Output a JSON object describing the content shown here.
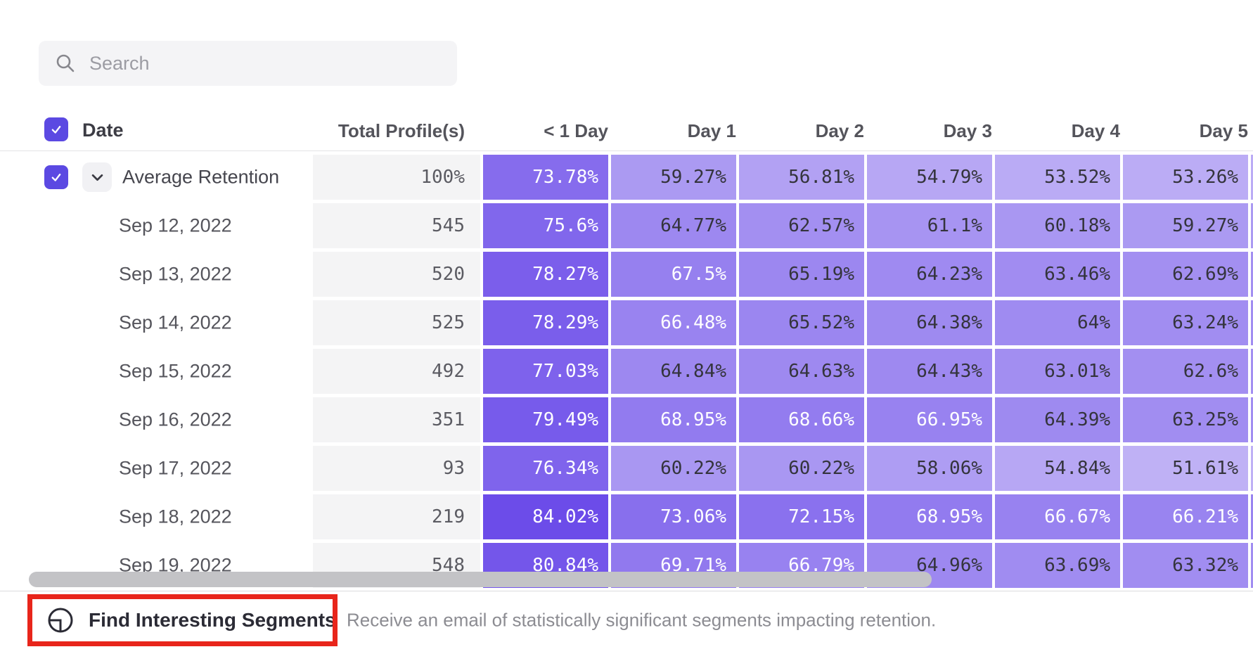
{
  "search": {
    "placeholder": "Search"
  },
  "table": {
    "date_header": "Date",
    "profiles_header": "Total Profile(s)",
    "day_columns": [
      "< 1 Day",
      "Day 1",
      "Day 2",
      "Day 3",
      "Day 4",
      "Day 5"
    ],
    "rows": [
      {
        "label": "Average Retention",
        "is_average": true,
        "profiles": "100%",
        "cells": [
          "73.78%",
          "59.27%",
          "56.81%",
          "54.79%",
          "53.52%",
          "53.26%"
        ]
      },
      {
        "label": "Sep 12, 2022",
        "is_average": false,
        "profiles": "545",
        "cells": [
          "75.6%",
          "64.77%",
          "62.57%",
          "61.1%",
          "60.18%",
          "59.27%"
        ]
      },
      {
        "label": "Sep 13, 2022",
        "is_average": false,
        "profiles": "520",
        "cells": [
          "78.27%",
          "67.5%",
          "65.19%",
          "64.23%",
          "63.46%",
          "62.69%"
        ]
      },
      {
        "label": "Sep 14, 2022",
        "is_average": false,
        "profiles": "525",
        "cells": [
          "78.29%",
          "66.48%",
          "65.52%",
          "64.38%",
          "64%",
          "63.24%"
        ]
      },
      {
        "label": "Sep 15, 2022",
        "is_average": false,
        "profiles": "492",
        "cells": [
          "77.03%",
          "64.84%",
          "64.63%",
          "64.43%",
          "63.01%",
          "62.6%"
        ]
      },
      {
        "label": "Sep 16, 2022",
        "is_average": false,
        "profiles": "351",
        "cells": [
          "79.49%",
          "68.95%",
          "68.66%",
          "66.95%",
          "64.39%",
          "63.25%"
        ]
      },
      {
        "label": "Sep 17, 2022",
        "is_average": false,
        "profiles": "93",
        "cells": [
          "76.34%",
          "60.22%",
          "60.22%",
          "58.06%",
          "54.84%",
          "51.61%"
        ]
      },
      {
        "label": "Sep 18, 2022",
        "is_average": false,
        "profiles": "219",
        "cells": [
          "84.02%",
          "73.06%",
          "72.15%",
          "68.95%",
          "66.67%",
          "66.21%"
        ]
      },
      {
        "label": "Sep 19, 2022",
        "is_average": false,
        "profiles": "548",
        "cells": [
          "80.84%",
          "69.71%",
          "66.79%",
          "64.96%",
          "63.69%",
          "63.32%"
        ]
      }
    ]
  },
  "footer": {
    "button_label": "Find Interesting Segments",
    "description": "Receive an email of statistically significant segments impacting retention."
  },
  "colors": {
    "accent": "#5b49e2",
    "highlight_red": "#e8251b",
    "heat_hue": 252,
    "heat_saturation": 78,
    "heat_scale_min": 50,
    "heat_scale_max": 85,
    "white_text_threshold": 66,
    "dark_cell_text": "#34343c"
  }
}
